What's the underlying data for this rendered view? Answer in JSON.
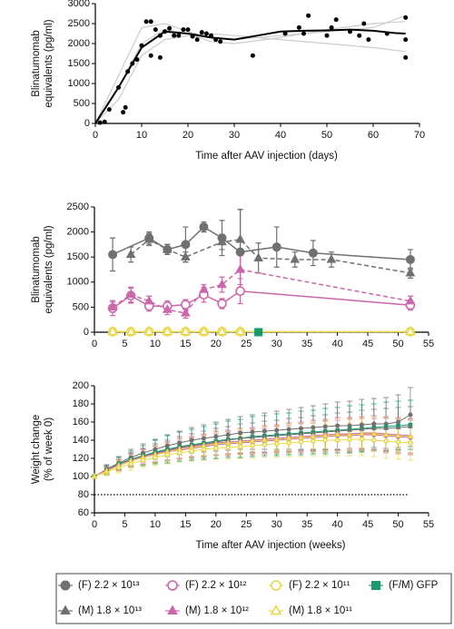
{
  "chart_data": [
    {
      "type": "scatter",
      "ylabel": [
        "Blinatumomab",
        "equivalents (pg/ml)"
      ],
      "xlabel": "Time after AAV injection (days)",
      "xlim": [
        0,
        70
      ],
      "xticks": [
        0,
        10,
        20,
        30,
        40,
        50,
        60,
        70
      ],
      "ylim": [
        0,
        3000
      ],
      "yticks": [
        0,
        500,
        1000,
        1500,
        2000,
        2500,
        3000
      ],
      "series": [
        {
          "kind": "line",
          "color": "#cccccc",
          "width": 1.2,
          "x": [
            0,
            5,
            10,
            15,
            20,
            25,
            30,
            40,
            50,
            60,
            67
          ],
          "values": [
            0,
            1200,
            2400,
            2500,
            2300,
            2150,
            2100,
            2200,
            2300,
            2400,
            2700
          ]
        },
        {
          "kind": "line",
          "color": "#cccccc",
          "width": 1.2,
          "x": [
            0,
            5,
            10,
            15,
            20,
            25,
            30,
            40,
            50,
            60,
            67
          ],
          "values": [
            0,
            600,
            1700,
            2100,
            2200,
            2250,
            2200,
            2100,
            2000,
            1900,
            1800
          ]
        },
        {
          "kind": "line",
          "color": "#cccccc",
          "width": 1.2,
          "x": [
            0,
            5,
            10,
            15,
            20,
            25,
            30,
            40,
            50,
            60,
            67
          ],
          "values": [
            0,
            900,
            2000,
            2350,
            2250,
            2050,
            2000,
            2150,
            2350,
            2500,
            2550
          ]
        },
        {
          "kind": "line",
          "color": "#000000",
          "width": 2,
          "x": [
            0,
            5,
            10,
            15,
            20,
            25,
            30,
            35,
            40,
            45,
            50,
            55,
            60,
            65,
            67
          ],
          "values": [
            0,
            900,
            1900,
            2300,
            2250,
            2150,
            2100,
            2200,
            2300,
            2320,
            2330,
            2350,
            2320,
            2260,
            2250
          ]
        },
        {
          "kind": "points",
          "color": "#000000",
          "marker": "circle",
          "filled": true,
          "x": [
            1,
            2,
            3,
            5,
            6,
            6.5,
            7,
            8,
            9,
            10,
            11,
            12,
            12,
            13,
            14,
            14,
            15,
            16,
            17,
            18,
            19,
            20,
            21,
            22,
            23,
            24,
            25,
            26,
            27,
            34,
            41,
            44,
            45,
            46,
            50,
            51,
            52,
            55,
            57,
            58,
            59,
            63,
            67,
            67,
            67
          ],
          "values": [
            20,
            40,
            350,
            900,
            280,
            400,
            1300,
            1500,
            1600,
            1950,
            2550,
            2550,
            1700,
            2350,
            2200,
            1650,
            2300,
            2380,
            2200,
            2200,
            2350,
            2350,
            2180,
            2100,
            2280,
            2250,
            2200,
            2100,
            2050,
            1700,
            2250,
            2400,
            2250,
            2700,
            2200,
            2400,
            2600,
            2300,
            2200,
            2500,
            2100,
            2250,
            2650,
            2100,
            1650
          ]
        }
      ]
    },
    {
      "type": "line",
      "ylabel": [
        "Blinatumomab",
        "equivalents (pg/ml)"
      ],
      "xlim": [
        0,
        55
      ],
      "xticks": [
        0,
        5,
        10,
        15,
        20,
        25,
        30,
        35,
        40,
        45,
        50,
        55
      ],
      "ylim": [
        0,
        2500
      ],
      "yticks": [
        0,
        500,
        1000,
        1500,
        2000,
        2500
      ],
      "series": [
        {
          "color": "#707070",
          "marker": "circle",
          "filled": true,
          "dash": false,
          "x": [
            3,
            9,
            12,
            15,
            18,
            21,
            24,
            30,
            36,
            52
          ],
          "values": [
            1550,
            1880,
            1650,
            1750,
            2100,
            1880,
            1600,
            1700,
            1580,
            1450
          ],
          "errors": [
            330,
            120,
            100,
            350,
            100,
            350,
            850,
            400,
            250,
            200
          ]
        },
        {
          "color": "#707070",
          "marker": "triangle",
          "filled": true,
          "dash": true,
          "x": [
            6,
            9,
            12,
            15,
            21,
            24,
            27,
            33,
            39,
            52
          ],
          "values": [
            1550,
            1850,
            1650,
            1500,
            1800,
            1850,
            1480,
            1450,
            1450,
            1180
          ],
          "errors": [
            150,
            120,
            100,
            100,
            150,
            600,
            300,
            150,
            150,
            100
          ]
        },
        {
          "color": "#cc66aa",
          "marker": "circle",
          "filled": false,
          "dash": false,
          "x": [
            3,
            6,
            9,
            12,
            15,
            18,
            21,
            24,
            52
          ],
          "values": [
            480,
            730,
            520,
            520,
            550,
            750,
            570,
            820,
            540
          ],
          "errors": [
            150,
            150,
            100,
            100,
            100,
            150,
            100,
            250,
            100
          ]
        },
        {
          "color": "#cc66aa",
          "marker": "triangle",
          "filled": true,
          "dash": true,
          "x": [
            3,
            6,
            9,
            12,
            15,
            18,
            21,
            24,
            52
          ],
          "values": [
            500,
            750,
            620,
            450,
            380,
            850,
            950,
            1250,
            620
          ],
          "errors": [
            100,
            150,
            100,
            100,
            100,
            100,
            150,
            300,
            100
          ]
        },
        {
          "color": "#e8d84a",
          "marker": "circle",
          "filled": false,
          "dash": false,
          "x": [
            3,
            6,
            9,
            12,
            15,
            18,
            21,
            24,
            52
          ],
          "values": [
            10,
            10,
            10,
            10,
            10,
            10,
            10,
            10,
            10
          ],
          "errors": [
            60,
            20,
            20,
            20,
            20,
            20,
            20,
            20,
            20
          ]
        },
        {
          "color": "#e8d84a",
          "marker": "triangle",
          "filled": false,
          "dash": true,
          "x": [
            3,
            6,
            9,
            12,
            15,
            18,
            21,
            24,
            52
          ],
          "values": [
            10,
            10,
            10,
            10,
            10,
            10,
            10,
            10,
            10
          ],
          "errors": [
            20,
            20,
            20,
            20,
            20,
            20,
            20,
            20,
            20
          ]
        },
        {
          "color": "#1a9a6a",
          "marker": "square",
          "filled": true,
          "dash": false,
          "x": [
            27
          ],
          "values": [
            0
          ],
          "errors": [
            0
          ]
        }
      ]
    },
    {
      "type": "line",
      "ylabel": [
        "Weight change",
        "(% of week 0)"
      ],
      "xlabel": "Time after AAV injection (weeks)",
      "xlim": [
        0,
        55
      ],
      "xticks": [
        0,
        5,
        10,
        15,
        20,
        25,
        30,
        35,
        40,
        45,
        50,
        55
      ],
      "ylim": [
        60,
        200
      ],
      "yticks": [
        60,
        80,
        100,
        120,
        140,
        160,
        180,
        200
      ],
      "hline": 80,
      "x": [
        0,
        2,
        4,
        6,
        8,
        10,
        12,
        14,
        16,
        18,
        20,
        22,
        24,
        26,
        28,
        30,
        32,
        34,
        36,
        38,
        40,
        42,
        44,
        46,
        48,
        50,
        52
      ],
      "series": [
        {
          "name": "(F) 2.2 × 10¹³",
          "color": "#707070",
          "marker": "circle",
          "filled": true,
          "values": [
            100,
            108,
            115,
            121,
            126,
            130,
            134,
            137,
            140,
            142,
            144,
            146,
            148,
            149,
            150,
            151,
            152,
            153,
            154,
            155,
            156,
            156,
            157,
            158,
            158,
            160,
            168
          ],
          "errors": [
            2,
            5,
            7,
            9,
            10,
            11,
            12,
            13,
            14,
            15,
            16,
            17,
            18,
            19,
            20,
            21,
            22,
            23,
            24,
            25,
            26,
            27,
            28,
            28,
            29,
            30,
            30
          ]
        },
        {
          "name": "(F) 2.2 × 10¹²",
          "color": "#cc66aa",
          "marker": "circle",
          "filled": false,
          "values": [
            100,
            106,
            112,
            117,
            121,
            124,
            127,
            129,
            131,
            133,
            135,
            136,
            137,
            138,
            139,
            140,
            141,
            142,
            143,
            144,
            145,
            145,
            146,
            146,
            145,
            144,
            143
          ],
          "errors": [
            2,
            4,
            6,
            7,
            8,
            9,
            10,
            10,
            11,
            12,
            12,
            13,
            13,
            14,
            14,
            15,
            15,
            16,
            16,
            17,
            17,
            18,
            18,
            18,
            19,
            19,
            19
          ]
        },
        {
          "name": "(F) 2.2 × 10¹¹",
          "color": "#e8d84a",
          "marker": "circle",
          "filled": false,
          "values": [
            100,
            105,
            110,
            114,
            118,
            121,
            124,
            126,
            128,
            130,
            131,
            132,
            133,
            134,
            135,
            136,
            137,
            138,
            139,
            140,
            140,
            141,
            141,
            140,
            139,
            138,
            137
          ],
          "errors": [
            2,
            4,
            6,
            7,
            8,
            9,
            10,
            10,
            11,
            12,
            12,
            13,
            13,
            14,
            14,
            15,
            15,
            16,
            16,
            17,
            17,
            18,
            18,
            18,
            19,
            19,
            19
          ]
        },
        {
          "name": "(F/M) GFP",
          "color": "#1a9a6a",
          "marker": "square",
          "filled": true,
          "values": [
            100,
            107,
            114,
            119,
            123,
            127,
            130,
            133,
            135,
            137,
            139,
            141,
            142,
            144,
            145,
            146,
            147,
            148,
            149,
            150,
            151,
            152,
            153,
            154,
            155,
            156,
            157
          ],
          "errors": [
            2,
            5,
            7,
            9,
            11,
            13,
            15,
            16,
            17,
            18,
            19,
            20,
            21,
            22,
            22,
            23,
            23,
            24,
            24,
            25,
            25,
            26,
            26,
            26,
            27,
            27,
            27
          ]
        },
        {
          "name": "(M) 1.8 × 10¹³",
          "color": "#707070",
          "marker": "triangle",
          "filled": true,
          "values": [
            100,
            107,
            113,
            118,
            122,
            126,
            129,
            132,
            134,
            136,
            138,
            140,
            142,
            143,
            144,
            145,
            146,
            147,
            148,
            149,
            150,
            151,
            152,
            153,
            153,
            154,
            155
          ],
          "errors": [
            2,
            4,
            6,
            8,
            9,
            10,
            11,
            12,
            13,
            14,
            15,
            15,
            16,
            16,
            17,
            17,
            18,
            18,
            19,
            19,
            20,
            20,
            21,
            21,
            22,
            22,
            22
          ]
        },
        {
          "name": "(M) 1.8 × 10¹²",
          "color": "#cc66aa",
          "marker": "triangle",
          "filled": true,
          "values": [
            100,
            107,
            113,
            118,
            122,
            125,
            128,
            131,
            133,
            135,
            137,
            138,
            139,
            140,
            141,
            142,
            143,
            144,
            145,
            146,
            147,
            147,
            148,
            148,
            147,
            146,
            145
          ],
          "errors": [
            2,
            4,
            6,
            7,
            8,
            9,
            10,
            11,
            11,
            12,
            13,
            13,
            14,
            14,
            15,
            15,
            16,
            16,
            17,
            17,
            18,
            18,
            18,
            19,
            19,
            19,
            19
          ]
        },
        {
          "name": "(M) 1.8 × 10¹¹",
          "color": "#e8d84a",
          "marker": "triangle",
          "filled": false,
          "values": [
            100,
            106,
            112,
            117,
            121,
            124,
            127,
            130,
            132,
            134,
            136,
            137,
            138,
            139,
            140,
            141,
            142,
            143,
            144,
            145,
            146,
            146,
            147,
            147,
            146,
            145,
            144
          ],
          "errors": [
            2,
            4,
            6,
            7,
            8,
            9,
            10,
            11,
            11,
            12,
            13,
            13,
            14,
            14,
            15,
            15,
            16,
            16,
            17,
            17,
            18,
            18,
            18,
            19,
            19,
            19,
            19
          ]
        }
      ]
    }
  ]
}
